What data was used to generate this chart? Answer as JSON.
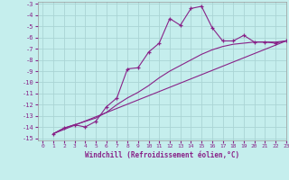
{
  "xlabel": "Windchill (Refroidissement éolien,°C)",
  "bg_color": "#c5eeed",
  "grid_color": "#aad4d4",
  "line_color": "#882288",
  "xlim": [
    -0.5,
    23
  ],
  "ylim": [
    -15.2,
    -2.8
  ],
  "yticks": [
    -15,
    -14,
    -13,
    -12,
    -11,
    -10,
    -9,
    -8,
    -7,
    -6,
    -5,
    -4,
    -3
  ],
  "xticks": [
    0,
    1,
    2,
    3,
    4,
    5,
    6,
    7,
    8,
    9,
    10,
    11,
    12,
    13,
    14,
    15,
    16,
    17,
    18,
    19,
    20,
    21,
    22,
    23
  ],
  "line1_x": [
    1,
    2,
    3,
    4,
    5,
    6,
    7,
    8,
    9,
    10,
    11,
    12,
    13,
    14,
    15,
    16,
    17,
    18,
    19,
    20,
    21,
    22,
    23
  ],
  "line1_y": [
    -14.6,
    -14.1,
    -13.8,
    -14.0,
    -13.5,
    -12.2,
    -11.4,
    -8.8,
    -8.7,
    -7.3,
    -6.5,
    -4.3,
    -4.9,
    -3.4,
    -3.2,
    -5.1,
    -6.3,
    -6.3,
    -5.8,
    -6.4,
    -6.4,
    -6.5,
    -6.3
  ],
  "line2_x": [
    1,
    23
  ],
  "line2_y": [
    -14.6,
    -6.3
  ],
  "line3_x": [
    1,
    2,
    3,
    4,
    5,
    6,
    7,
    8,
    9,
    10,
    11,
    12,
    13,
    14,
    15,
    16,
    17,
    18,
    19,
    20,
    21,
    22,
    23
  ],
  "line3_y": [
    -14.6,
    -14.1,
    -13.8,
    -13.5,
    -13.2,
    -12.7,
    -12.0,
    -11.4,
    -10.9,
    -10.3,
    -9.6,
    -9.0,
    -8.5,
    -8.0,
    -7.5,
    -7.1,
    -6.8,
    -6.6,
    -6.5,
    -6.4,
    -6.4,
    -6.4,
    -6.3
  ]
}
